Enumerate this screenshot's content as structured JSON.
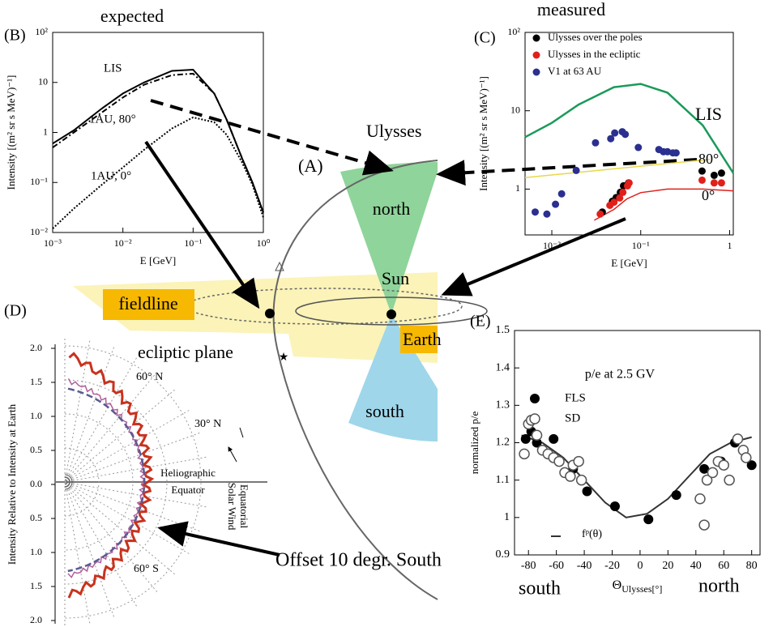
{
  "chart_data": [
    {
      "type": "line",
      "panel": "(B)",
      "title": "expected",
      "x_label": "E [GeV]",
      "y_label": "Intensity [(m² sr s MeV)⁻¹]",
      "xlog": true,
      "ylog": true,
      "xlim": [
        0.001,
        1
      ],
      "ylim": [
        0.01,
        100
      ],
      "xticks": [
        {
          "value": 0.001,
          "label": "10⁻³"
        },
        {
          "value": 0.01,
          "label": "10⁻²"
        },
        {
          "value": 0.1,
          "label": "10⁻¹"
        },
        {
          "value": 1,
          "label": "10⁰"
        }
      ],
      "yticks": [
        {
          "value": 0.01,
          "label": "10⁻²"
        },
        {
          "value": 0.1,
          "label": "10⁻¹"
        },
        1,
        10,
        {
          "value": 100,
          "label": "10²"
        }
      ],
      "x": [
        0.001,
        0.002,
        0.005,
        0.01,
        0.02,
        0.05,
        0.1,
        0.2,
        0.3,
        0.5,
        0.7,
        1
      ],
      "series": [
        {
          "name": "LIS",
          "color": "#000000",
          "dash": "solid",
          "values": [
            0.6,
            1.1,
            3,
            6,
            10,
            17,
            18,
            6,
            1.8,
            0.3,
            0.1,
            0.025
          ]
        },
        {
          "name": "1AU, 80°",
          "color": "#000000",
          "dash": "dashdot",
          "values": [
            0.5,
            1,
            2.5,
            5,
            9,
            14,
            15,
            6,
            1.8,
            0.3,
            0.1,
            0.025
          ]
        },
        {
          "name": "1AU, 0°",
          "color": "#000000",
          "dash": "dotted",
          "values": [
            0.012,
            0.03,
            0.09,
            0.2,
            0.45,
            1.2,
            2,
            1.6,
            0.9,
            0.25,
            0.09,
            0.02
          ]
        }
      ]
    },
    {
      "type": "scatter",
      "panel": "(C)",
      "title": "measured",
      "x_label": "E [GeV]",
      "y_label": "Intensity [(m² sr s MeV)⁻¹]",
      "xlog": true,
      "ylog": true,
      "xlim": [
        0.005,
        1.1
      ],
      "ylim": [
        0.26,
        100
      ],
      "xticks": [
        {
          "value": 0.01,
          "label": "10⁻²"
        },
        {
          "value": 0.1,
          "label": "10⁻¹"
        },
        1
      ],
      "yticks": [
        1,
        10,
        {
          "value": 100,
          "label": "10²"
        }
      ],
      "series": [
        {
          "name": "Ulysses over the poles",
          "color": "#000000",
          "x": [
            0.037,
            0.048,
            0.053,
            0.059,
            0.064,
            0.073,
            0.49,
            0.67,
            0.81
          ],
          "values": [
            0.51,
            0.7,
            0.78,
            0.91,
            1.1,
            1.2,
            1.7,
            1.5,
            1.6
          ]
        },
        {
          "name": "Ulysses in the ecliptic",
          "color": "#e0201b",
          "x": [
            0.035,
            0.045,
            0.05,
            0.058,
            0.063,
            0.071,
            0.074,
            0.49,
            0.67,
            0.81
          ],
          "values": [
            0.48,
            0.62,
            0.68,
            0.77,
            0.91,
            1.1,
            1.2,
            1.3,
            1.2,
            1.2
          ]
        },
        {
          "name": "V1 at 63 AU",
          "color": "#2b2f8f",
          "x": [
            0.0065,
            0.0088,
            0.011,
            0.0129,
            0.0188,
            0.031,
            0.046,
            0.051,
            0.062,
            0.067,
            0.094,
            0.16,
            0.18,
            0.2,
            0.23,
            0.25
          ],
          "values": [
            0.51,
            0.48,
            0.64,
            0.87,
            1.73,
            3.9,
            4.4,
            5.2,
            5.4,
            5,
            3.4,
            3.2,
            3,
            3,
            2.9,
            2.9
          ]
        }
      ],
      "curves": [
        {
          "name": "LIS",
          "color": "#1a9a5a",
          "x": [
            0.005,
            0.01,
            0.02,
            0.05,
            0.1,
            0.2,
            0.5,
            1.1
          ],
          "values": [
            4.6,
            7,
            12,
            20,
            22,
            17,
            6.5,
            1.6
          ]
        },
        {
          "name": "80°",
          "color": "#e8d84a",
          "x": [
            0.005,
            0.6
          ],
          "values": [
            1.4,
            2.4
          ]
        },
        {
          "name": "0°",
          "color": "#e0201b",
          "x": [
            0.03,
            0.05,
            0.07,
            0.1,
            0.2,
            0.5,
            1.1
          ],
          "values": [
            0.4,
            0.55,
            0.75,
            0.9,
            1,
            1,
            0.95
          ]
        }
      ]
    },
    {
      "type": "scatter",
      "panel": "(E)",
      "title": "p/e at 2.5 GV",
      "x_label": "Θ",
      "x_label_sub": "Ulysses[°]",
      "y_label": "normalized p/e",
      "xlim": [
        -90,
        86
      ],
      "ylim": [
        0.9,
        1.5
      ],
      "xticks": [
        -80,
        -60,
        -40,
        -20,
        0,
        20,
        40,
        60,
        80
      ],
      "yticks": [
        0.9,
        1,
        1.1,
        1.2,
        1.3,
        1.4,
        1.5
      ],
      "annotations": [
        "south",
        "north"
      ],
      "series": [
        {
          "name": "FLS",
          "color": "#000000",
          "marker": "filled",
          "x": [
            -82,
            -78,
            -74,
            -62,
            -48,
            -38,
            -18,
            6,
            26,
            46,
            58,
            68,
            80
          ],
          "values": [
            1.21,
            1.23,
            1.2,
            1.21,
            1.13,
            1.07,
            1.03,
            0.995,
            1.06,
            1.13,
            1.15,
            1.2,
            1.14
          ]
        },
        {
          "name": "SD",
          "color": "#555555",
          "marker": "open",
          "x": [
            -83,
            -80,
            -78,
            -74,
            -70,
            -66,
            -62,
            -58,
            -54,
            -50,
            -48,
            -44,
            -42,
            43,
            46,
            48,
            52,
            56,
            60,
            64,
            70,
            74,
            76
          ],
          "values": [
            1.17,
            1.25,
            1.26,
            1.22,
            1.18,
            1.17,
            1.16,
            1.15,
            1.12,
            1.11,
            1.14,
            1.15,
            1.1,
            1.05,
            0.98,
            1.1,
            1.12,
            1.15,
            1.14,
            1.1,
            1.21,
            1.18,
            1.16
          ]
        }
      ],
      "curves": [
        {
          "name": "fᵖ(θ)",
          "color": "#333333",
          "x": [
            -85,
            -70,
            -55,
            -40,
            -25,
            -10,
            5,
            20,
            35,
            50,
            65,
            80
          ],
          "values": [
            1.22,
            1.2,
            1.16,
            1.1,
            1.04,
            1.0,
            1.01,
            1.05,
            1.11,
            1.17,
            1.2,
            1.215
          ]
        }
      ]
    }
  ],
  "diagram": {
    "panel_a": {
      "label": "(A)",
      "ulysses": "Ulysses",
      "north": "north",
      "sun": "Sun",
      "fieldline": "fieldline",
      "earth": "Earth",
      "ecliptic": "ecliptic plane",
      "south": "south"
    },
    "panel_d": {
      "label": "(D)",
      "y_label": "Intensity Relative to Intensity at Earth",
      "ticks": [
        "2.0",
        "1.5",
        "1.0",
        "0.5",
        "0.0",
        "0.5",
        "1.0",
        "1.5",
        "2.0"
      ],
      "lat_60n": "60° N",
      "lat_30n": "30° N",
      "lat_60s": "60° S",
      "equator": [
        "Heliographic",
        "Equator"
      ],
      "solar_wind": [
        "Equatorial",
        "Solar Wind"
      ],
      "offset": "Offset 10 degr. South"
    }
  }
}
